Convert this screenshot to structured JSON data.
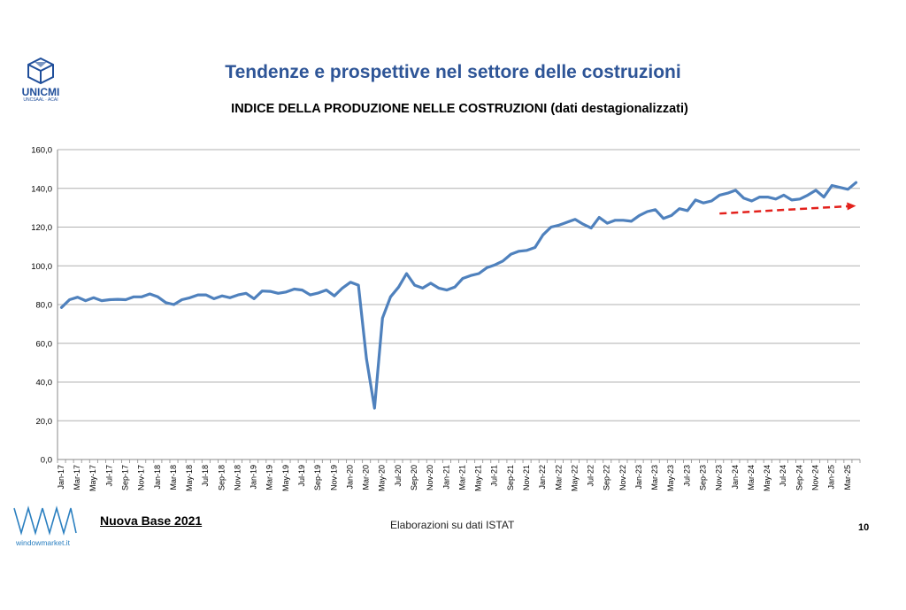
{
  "header": {
    "logo_name": "UNICMI",
    "logo_sub": "UNCSAAL · ACAI",
    "title": "Tendenze e prospettive nel settore delle costruzioni"
  },
  "footer": {
    "base_label": "Nuova Base 2021",
    "source": "Elaborazioni su dati ISTAT",
    "page_number": "10",
    "wm_logo_text": "windowmarket.it"
  },
  "colors": {
    "line": "#4f81bd",
    "grid": "#b0b0b0",
    "trend_arrow": "#e3211c",
    "title": "#2e5597"
  },
  "chart_data": {
    "type": "line",
    "title": "INDICE DELLA PRODUZIONE NELLE COSTRUZIONI (dati destagionalizzati)",
    "xlabel": "",
    "ylabel": "",
    "ylim": [
      0,
      160
    ],
    "yticks": [
      "0,0",
      "20,0",
      "40,0",
      "60,0",
      "80,0",
      "100,0",
      "120,0",
      "140,0",
      "160,0"
    ],
    "grid": true,
    "legend": "none",
    "categories": [
      "Jan-17",
      "Feb-17",
      "Mar-17",
      "Apr-17",
      "May-17",
      "Jun-17",
      "Jul-17",
      "Aug-17",
      "Sep-17",
      "Oct-17",
      "Nov-17",
      "Dec-17",
      "Jan-18",
      "Feb-18",
      "Mar-18",
      "Apr-18",
      "May-18",
      "Jun-18",
      "Jul-18",
      "Aug-18",
      "Sep-18",
      "Oct-18",
      "Nov-18",
      "Dec-18",
      "Jan-19",
      "Feb-19",
      "Mar-19",
      "Apr-19",
      "May-19",
      "Jun-19",
      "Jul-19",
      "Aug-19",
      "Sep-19",
      "Oct-19",
      "Nov-19",
      "Dec-19",
      "Jan-20",
      "Feb-20",
      "Mar-20",
      "Apr-20",
      "May-20",
      "Jun-20",
      "Jul-20",
      "Aug-20",
      "Sep-20",
      "Oct-20",
      "Nov-20",
      "Dec-20",
      "Jan-21",
      "Feb-21",
      "Mar-21",
      "Apr-21",
      "May-21",
      "Jun-21",
      "Jul-21",
      "Aug-21",
      "Sep-21",
      "Oct-21",
      "Nov-21",
      "Dec-21",
      "Jan-22",
      "Feb-22",
      "Mar-22",
      "Apr-22",
      "May-22",
      "Jun-22",
      "Jul-22",
      "Aug-22",
      "Sep-22",
      "Oct-22",
      "Nov-22",
      "Dec-22",
      "Jan-23",
      "Feb-23",
      "Mar-23",
      "Apr-23",
      "May-23",
      "Jun-23",
      "Jul-23",
      "Aug-23",
      "Sep-23",
      "Oct-23",
      "Nov-23",
      "Dec-23",
      "Jan-24",
      "Feb-24",
      "Mar-24",
      "Apr-24",
      "May-24",
      "Jun-24",
      "Jul-24",
      "Aug-24",
      "Sep-24",
      "Oct-24",
      "Nov-24",
      "Dec-24",
      "Jan-25",
      "Feb-25",
      "Mar-25",
      "Apr-25"
    ],
    "tick_labels": [
      "Jan-17",
      "Mar-17",
      "May-17",
      "Jul-17",
      "Sep-17",
      "Nov-17",
      "Jan-18",
      "Mar-18",
      "May-18",
      "Jul-18",
      "Sep-18",
      "Nov-18",
      "Jan-19",
      "Mar-19",
      "May-19",
      "Jul-19",
      "Sep-19",
      "Nov-19",
      "Jan-20",
      "Mar-20",
      "May-20",
      "Jul-20",
      "Sep-20",
      "Nov-20",
      "Jan-21",
      "Mar-21",
      "May-21",
      "Jul-21",
      "Sep-21",
      "Nov-21",
      "Jan-22",
      "Mar-22",
      "May-22",
      "Jul-22",
      "Sep-22",
      "Nov-22",
      "Jan-23",
      "Mar-23",
      "May-23",
      "Jul-23",
      "Sep-23",
      "Nov-23",
      "Jan-24",
      "Mar-24",
      "May-24",
      "Jul-24",
      "Sep-24",
      "Nov-24",
      "Jan-25",
      "Mar-25"
    ],
    "series": [
      {
        "values": [
          78.5,
          82.5,
          83.8,
          82.0,
          83.5,
          82.0,
          82.5,
          82.7,
          82.5,
          84.0,
          84.0,
          85.5,
          84.0,
          81.0,
          80.0,
          82.5,
          83.5,
          85.0,
          85.0,
          83.0,
          84.5,
          83.5,
          85.0,
          85.8,
          83.0,
          87.0,
          86.8,
          85.8,
          86.5,
          88.0,
          87.5,
          85.0,
          86.0,
          87.5,
          84.5,
          88.5,
          91.5,
          90.0,
          52.0,
          26.5,
          73.0,
          84.0,
          89.0,
          96.0,
          90.0,
          88.5,
          91.0,
          88.5,
          87.5,
          89.0,
          93.5,
          95.0,
          96.0,
          99.0,
          100.5,
          102.5,
          106.0,
          107.5,
          108.0,
          109.5,
          116.0,
          120.0,
          121.0,
          122.5,
          124.0,
          121.5,
          119.5,
          125.0,
          122.0,
          123.5,
          123.5,
          123.0,
          126.0,
          128.0,
          129.0,
          124.5,
          126.0,
          129.5,
          128.5,
          134.0,
          132.5,
          133.5,
          136.5,
          137.5,
          139.0,
          135.0,
          133.5,
          135.5,
          135.5,
          134.5,
          136.5,
          134.0,
          134.5,
          136.5,
          139.0,
          135.5,
          141.5,
          140.5,
          139.5,
          143.0
        ]
      }
    ],
    "annotations": [
      {
        "type": "trend_arrow",
        "from": [
          "Nov-23",
          127
        ],
        "to": [
          "Apr-25",
          131
        ]
      }
    ]
  }
}
